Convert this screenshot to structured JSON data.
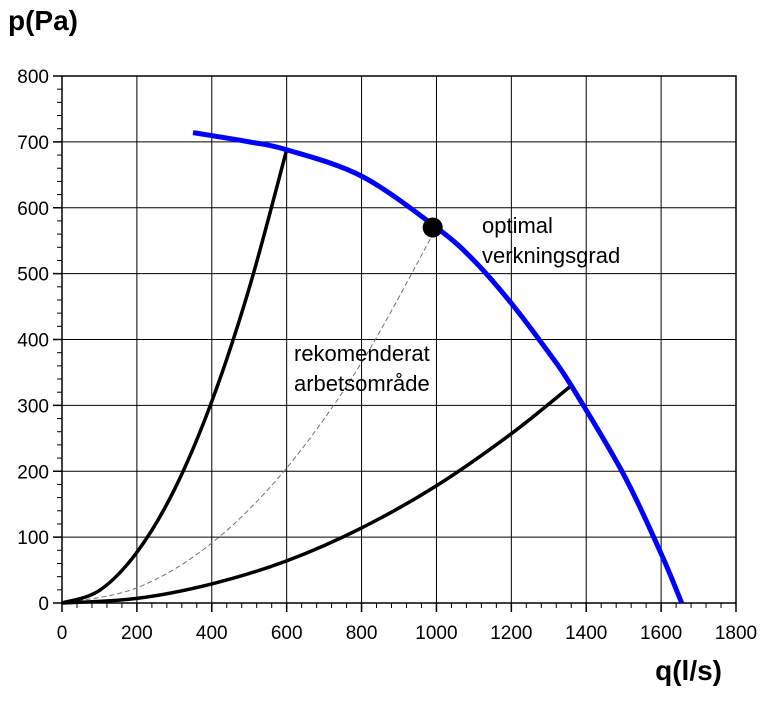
{
  "chart_data": {
    "type": "line",
    "title": "",
    "ylabel": "p(Pa)",
    "xlabel": "q(l/s)",
    "xlim": [
      0,
      1800
    ],
    "ylim": [
      0,
      800
    ],
    "x_ticks": [
      0,
      200,
      400,
      600,
      800,
      1000,
      1200,
      1400,
      1600,
      1800
    ],
    "y_ticks": [
      0,
      100,
      200,
      300,
      400,
      500,
      600,
      700,
      800
    ],
    "grid": true,
    "colors": {
      "fan_curve": "#0000ff",
      "system_curves": "#000000",
      "optimal_curve": "#707070"
    },
    "series": [
      {
        "x": [
          350,
          500,
          600,
          800,
          1000,
          1100,
          1200,
          1300,
          1360,
          1500,
          1600,
          1655
        ],
        "y": [
          714,
          700,
          688,
          648,
          570,
          520,
          455,
          380,
          330,
          195,
          75,
          0
        ]
      },
      {
        "x": [
          0,
          100,
          200,
          300,
          400,
          500,
          600
        ],
        "y": [
          0,
          19,
          77,
          172,
          306,
          478,
          688
        ]
      },
      {
        "x": [
          0,
          200,
          400,
          600,
          800,
          1000,
          1200,
          1360
        ],
        "y": [
          0,
          7,
          29,
          64,
          114,
          178,
          257,
          330
        ]
      },
      {
        "x": [
          0,
          200,
          400,
          600,
          800,
          1000
        ],
        "y": [
          0,
          23,
          91,
          205,
          365,
          570
        ]
      }
    ],
    "points": [
      {
        "x": 990,
        "y": 570,
        "label": "optimal verkningsgrad"
      }
    ],
    "annotations": {
      "optimal": [
        "optimal",
        "verkningsgrad"
      ],
      "range": [
        "rekomenderat",
        "arbetsområde"
      ]
    }
  }
}
